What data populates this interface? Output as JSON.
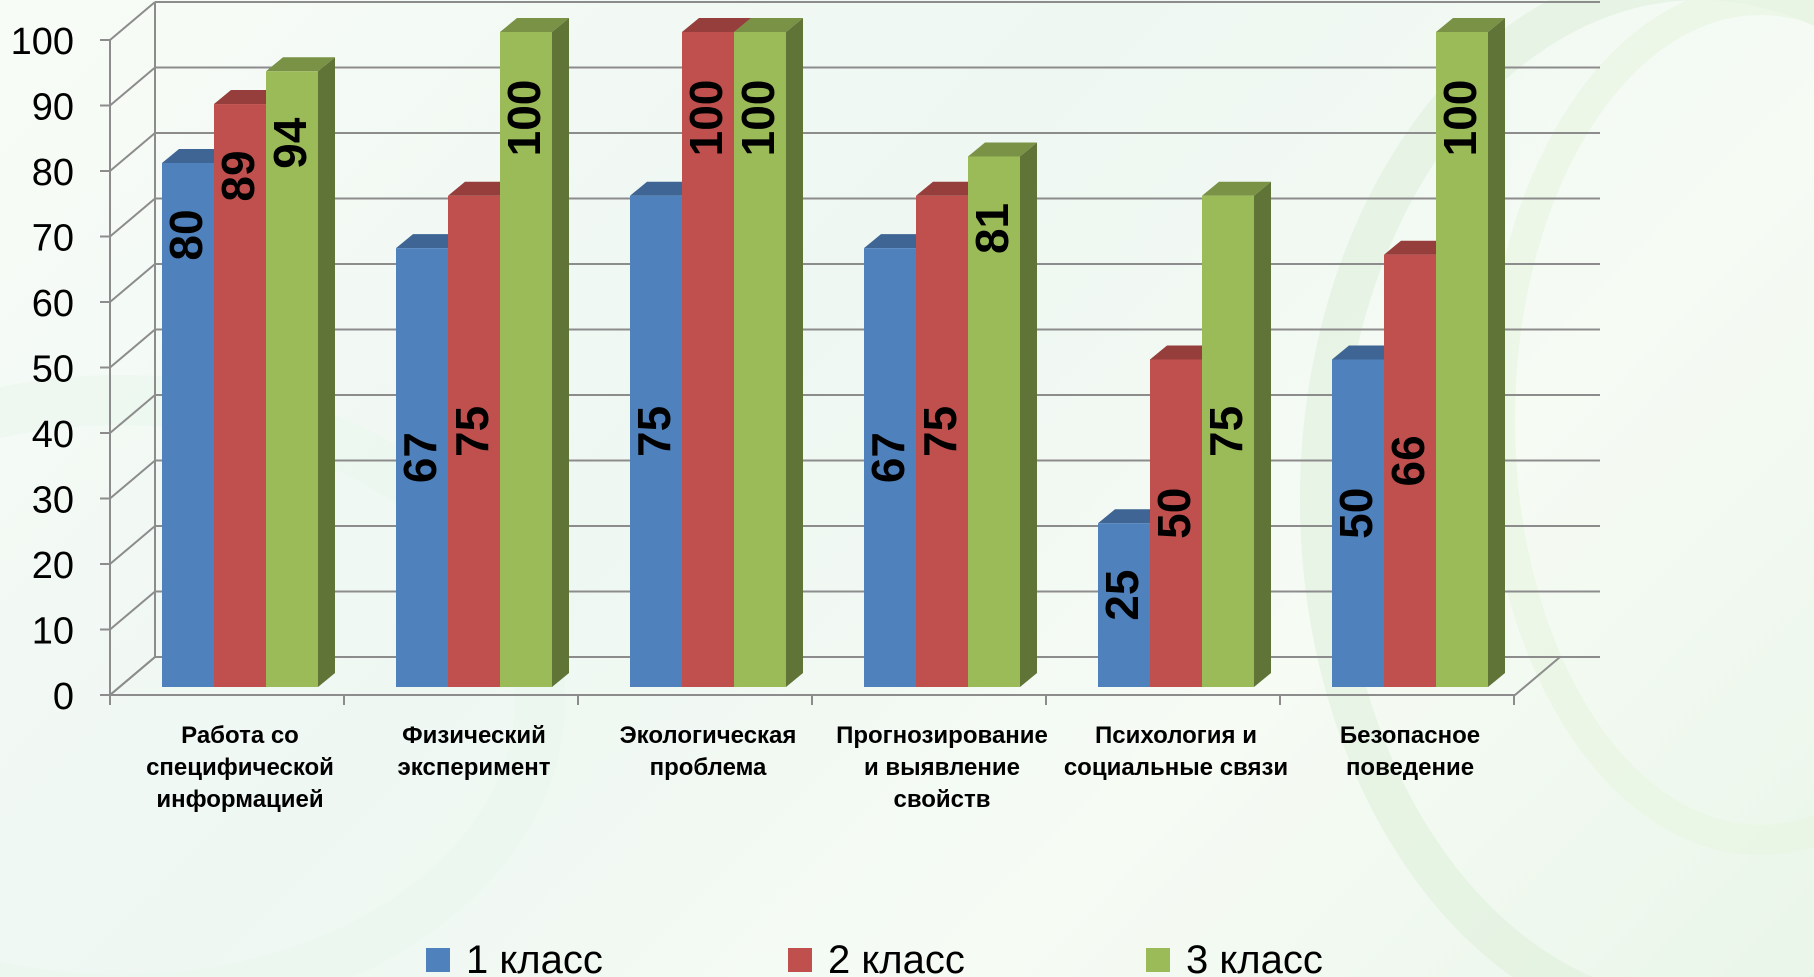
{
  "chart_data": {
    "type": "bar",
    "title": "",
    "xlabel": "",
    "ylabel": "",
    "ylim": [
      0,
      100
    ],
    "yticks": [
      0,
      10,
      20,
      30,
      40,
      50,
      60,
      70,
      80,
      90,
      100
    ],
    "grid": true,
    "style": "3d-clustered-column",
    "legend_position": "bottom",
    "categories": [
      [
        "Работа со",
        "специфической",
        "информацией"
      ],
      [
        "Физический",
        "эксперимент"
      ],
      [
        "Экологическая",
        "проблема"
      ],
      [
        "Прогнозирование",
        "и выявление",
        "свойств"
      ],
      [
        "Психология и",
        "социальные связи"
      ],
      [
        "Безопасное",
        "поведение"
      ]
    ],
    "series": [
      {
        "name": "1 класс",
        "color": "#4f81bd",
        "values": [
          80,
          67,
          75,
          67,
          25,
          50
        ]
      },
      {
        "name": "2 класс",
        "color": "#c0504d",
        "values": [
          89,
          75,
          100,
          75,
          50,
          66
        ]
      },
      {
        "name": "3 класс",
        "color": "#9bbb59",
        "values": [
          94,
          100,
          100,
          81,
          75,
          100
        ]
      }
    ]
  }
}
